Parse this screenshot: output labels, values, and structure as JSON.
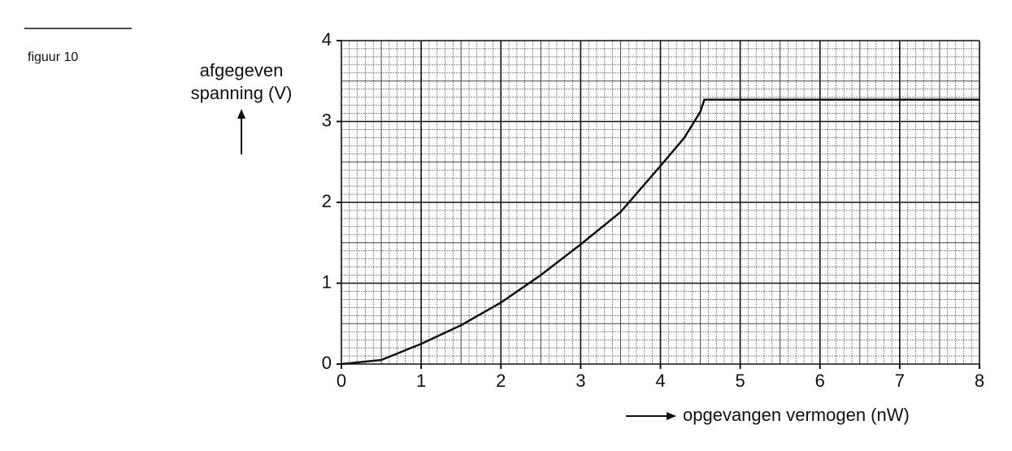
{
  "figure_label": "figuur 10",
  "chart_data": {
    "type": "line",
    "ylabel": [
      "afgegeven",
      "spanning (V)"
    ],
    "xlabel": "opgevangen vermogen (nW)",
    "x": [
      0,
      0.5,
      1,
      1.5,
      2,
      2.5,
      3,
      3.5,
      4,
      4.3,
      4.5,
      4.55,
      8
    ],
    "series": [
      {
        "color": "#111111",
        "values": [
          0,
          0.05,
          0.25,
          0.48,
          0.76,
          1.1,
          1.48,
          1.88,
          2.45,
          2.8,
          3.12,
          3.27,
          3.27
        ]
      }
    ],
    "xlim": [
      0,
      8
    ],
    "ylim": [
      0,
      4
    ],
    "xticks": [
      0,
      1,
      2,
      3,
      4,
      5,
      6,
      7,
      8
    ],
    "yticks": [
      0,
      1,
      2,
      3,
      4
    ],
    "grid": true,
    "minor_grid_step": 0.1
  }
}
